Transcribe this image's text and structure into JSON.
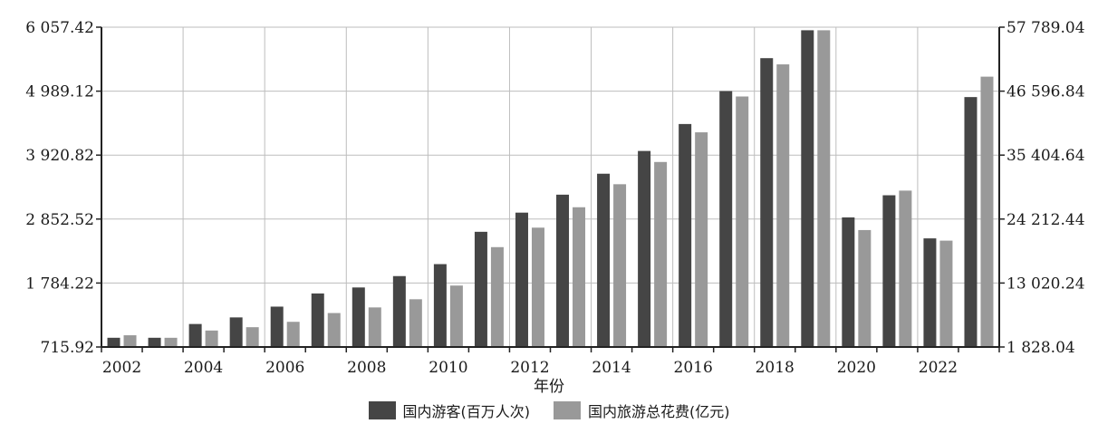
{
  "chart_data": {
    "type": "bar",
    "title": "",
    "xlabel": "年份",
    "x_tick_labels": [
      "2002",
      "2004",
      "2006",
      "2008",
      "2010",
      "2012",
      "2014",
      "2016",
      "2018",
      "2020",
      "2022"
    ],
    "categories": [
      "2002",
      "2003",
      "2004",
      "2005",
      "2006",
      "2007",
      "2008",
      "2009",
      "2010",
      "2011",
      "2012",
      "2013",
      "2014",
      "2015",
      "2016",
      "2017",
      "2018",
      "2019",
      "2020",
      "2021",
      "2022",
      "2023"
    ],
    "ylim_left": [
      715.92,
      6057.42
    ],
    "ylim_right": [
      1828.04,
      57789.04
    ],
    "y_left_ticks": [
      "6 057.42",
      "4 989.12",
      "3 920.82",
      "2 852.52",
      "1 784.22",
      "715.92"
    ],
    "y_right_ticks": [
      "57 789.04",
      "46 596.84",
      "35 404.64",
      "24 212.44",
      "13 020.24",
      "1 828.04"
    ],
    "grid": true,
    "legend_position": "bottom",
    "series": [
      {
        "name": "国内游客(百万人次)",
        "axis": "left",
        "color": "#454545",
        "values": [
          870,
          870,
          1100,
          1210,
          1390,
          1610,
          1710,
          1900,
          2100,
          2640,
          2960,
          3260,
          3610,
          3990,
          4440,
          4990,
          5540,
          6006,
          2880,
          3250,
          2530,
          4890
        ]
      },
      {
        "name": "国内旅游总花费(亿元)",
        "axis": "right",
        "color": "#999999",
        "values": [
          3880,
          3440,
          4710,
          5290,
          6230,
          7770,
          8750,
          10180,
          12580,
          19300,
          22710,
          26280,
          30310,
          34200,
          39390,
          45660,
          51280,
          57250,
          22290,
          29190,
          20440,
          49130
        ]
      }
    ]
  }
}
